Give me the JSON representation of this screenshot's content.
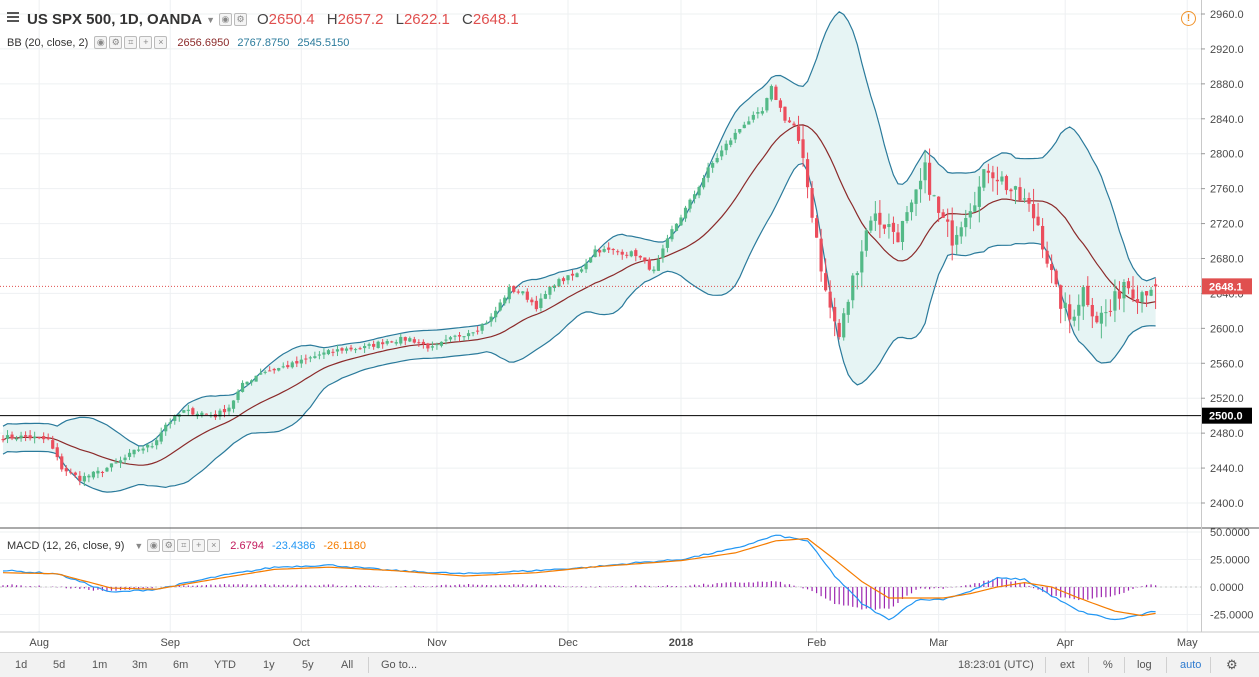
{
  "header": {
    "symbol_title": "US SPX 500, 1D, OANDA",
    "ohlc": [
      {
        "label": "O",
        "value": "2650.4"
      },
      {
        "label": "H",
        "value": "2657.2"
      },
      {
        "label": "L",
        "value": "2622.1"
      },
      {
        "label": "C",
        "value": "2648.1"
      }
    ]
  },
  "indicators": {
    "bb": {
      "name": "BB (20, close, 2)",
      "values": [
        "2656.6950",
        "2767.8750",
        "2545.5150"
      ],
      "colors": [
        "#8b2a2a",
        "#2a7a9b",
        "#2a7a9b"
      ]
    },
    "macd": {
      "name": "MACD (12, 26, close, 9)",
      "values": [
        "2.6794",
        "-23.4386",
        "-26.1180"
      ],
      "colors": [
        "#c2185b",
        "#2196f3",
        "#f57c00"
      ]
    }
  },
  "price_axis": {
    "ticks": [
      "2960.0",
      "2920.0",
      "2880.0",
      "2840.0",
      "2800.0",
      "2760.0",
      "2720.0",
      "2680.0",
      "2640.0",
      "2600.0",
      "2560.0",
      "2520.0",
      "2480.0",
      "2440.0",
      "2400.0"
    ],
    "last_price_label": "2648.1",
    "level_label": "2500.0"
  },
  "macd_axis": {
    "ticks": [
      "50.0000",
      "25.0000",
      "0.0000",
      "-25.0000"
    ]
  },
  "time_axis": {
    "labels": [
      "Aug",
      "Sep",
      "Oct",
      "Nov",
      "Dec",
      "2018",
      "Feb",
      "Mar",
      "Apr",
      "May"
    ]
  },
  "bottom_bar": {
    "timeframes": [
      "1d",
      "5d",
      "1m",
      "3m",
      "6m",
      "YTD",
      "1y",
      "5y",
      "All"
    ],
    "goto": "Go to...",
    "clock": "18:23:01 (UTC)",
    "toggles": [
      "ext",
      "%",
      "log",
      "auto"
    ]
  },
  "colors": {
    "up": "#53b987",
    "down": "#eb4d5c",
    "bb_basis": "#8b2a2a",
    "bb_band": "#2a7a9b",
    "bb_fill": "#e6f4f4",
    "macd_line": "#2196f3",
    "signal_line": "#f57c00",
    "histogram": "#9c27b0",
    "last_price": "#e0504f",
    "level_line": "#000000"
  },
  "chart_data": {
    "type": "candlestick",
    "title": "US SPX 500, 1D, OANDA",
    "ylim": [
      2380,
      2970
    ],
    "level": 2500,
    "last_price": 2648.1,
    "macd_ylim": [
      -37,
      52
    ],
    "x_labels": [
      "Aug",
      "Sep",
      "Oct",
      "Nov",
      "Dec",
      "2018",
      "Feb",
      "Mar",
      "Apr",
      "May"
    ],
    "anchors": [
      [
        0,
        2475
      ],
      [
        5,
        2476
      ],
      [
        10,
        2472
      ],
      [
        13,
        2440
      ],
      [
        17,
        2428
      ],
      [
        21,
        2435
      ],
      [
        26,
        2448
      ],
      [
        30,
        2462
      ],
      [
        33,
        2466
      ],
      [
        36,
        2490
      ],
      [
        40,
        2505
      ],
      [
        44,
        2503
      ],
      [
        47,
        2500
      ],
      [
        50,
        2510
      ],
      [
        53,
        2535
      ],
      [
        57,
        2550
      ],
      [
        60,
        2553
      ],
      [
        65,
        2560
      ],
      [
        70,
        2570
      ],
      [
        75,
        2576
      ],
      [
        80,
        2578
      ],
      [
        85,
        2586
      ],
      [
        90,
        2588
      ],
      [
        95,
        2577
      ],
      [
        100,
        2590
      ],
      [
        105,
        2600
      ],
      [
        108,
        2612
      ],
      [
        112,
        2645
      ],
      [
        115,
        2640
      ],
      [
        118,
        2625
      ],
      [
        122,
        2652
      ],
      [
        127,
        2662
      ],
      [
        131,
        2690
      ],
      [
        136,
        2688
      ],
      [
        140,
        2685
      ],
      [
        144,
        2665
      ],
      [
        148,
        2712
      ],
      [
        152,
        2745
      ],
      [
        156,
        2782
      ],
      [
        160,
        2810
      ],
      [
        164,
        2835
      ],
      [
        168,
        2848
      ],
      [
        170,
        2875
      ],
      [
        173,
        2840
      ],
      [
        175,
        2832
      ],
      [
        178,
        2762
      ],
      [
        180,
        2705
      ],
      [
        182,
        2640
      ],
      [
        185,
        2590
      ],
      [
        188,
        2655
      ],
      [
        192,
        2730
      ],
      [
        195,
        2720
      ],
      [
        198,
        2708
      ],
      [
        201,
        2735
      ],
      [
        204,
        2780
      ],
      [
        207,
        2730
      ],
      [
        210,
        2705
      ],
      [
        213,
        2735
      ],
      [
        216,
        2760
      ],
      [
        218,
        2785
      ],
      [
        221,
        2770
      ],
      [
        224,
        2752
      ],
      [
        226,
        2745
      ],
      [
        229,
        2720
      ],
      [
        231,
        2680
      ],
      [
        233,
        2640
      ],
      [
        236,
        2610
      ],
      [
        239,
        2645
      ],
      [
        242,
        2612
      ],
      [
        245,
        2620
      ],
      [
        248,
        2655
      ],
      [
        251,
        2640
      ],
      [
        254,
        2650
      ]
    ],
    "macd_anchors": [
      [
        0,
        15,
        13
      ],
      [
        12,
        12,
        12
      ],
      [
        24,
        -5,
        -1
      ],
      [
        34,
        -2,
        -2
      ],
      [
        48,
        10,
        8
      ],
      [
        60,
        18,
        16
      ],
      [
        72,
        20,
        18
      ],
      [
        86,
        15,
        15
      ],
      [
        102,
        12,
        10
      ],
      [
        118,
        15,
        13
      ],
      [
        130,
        18,
        18
      ],
      [
        140,
        22,
        21
      ],
      [
        150,
        25,
        24
      ],
      [
        162,
        35,
        31
      ],
      [
        171,
        47,
        42
      ],
      [
        178,
        42,
        44
      ],
      [
        184,
        10,
        25
      ],
      [
        190,
        -15,
        5
      ],
      [
        196,
        -30,
        -10
      ],
      [
        202,
        -12,
        -10
      ],
      [
        208,
        -11,
        -10
      ],
      [
        214,
        -4,
        -6
      ],
      [
        220,
        8,
        0
      ],
      [
        226,
        7,
        4
      ],
      [
        232,
        -8,
        0
      ],
      [
        238,
        -22,
        -10
      ],
      [
        246,
        -30,
        -22
      ],
      [
        252,
        -25,
        -26
      ],
      [
        255,
        -22,
        -24
      ]
    ]
  }
}
